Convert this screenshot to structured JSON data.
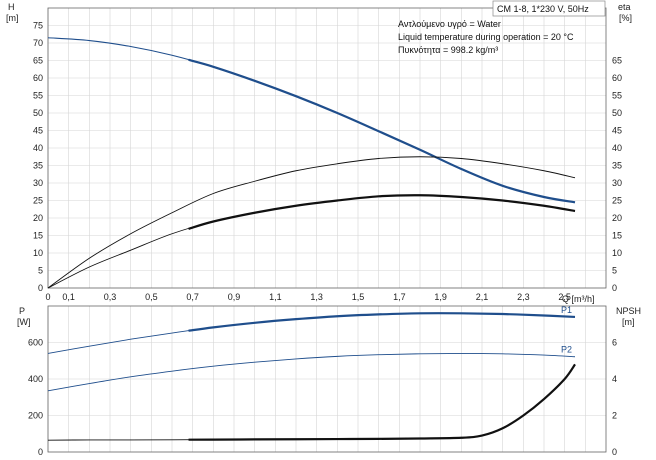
{
  "chart_data": {
    "type": "line",
    "title": "CM 1-8, 1*230 V, 50Hz",
    "annotations": [
      "Αντλούμενο υγρό = Water",
      "Liquid temperature during operation = 20 °C",
      "Πυκνότητα = 998.2 kg/m³"
    ],
    "grid": true,
    "top_panel": {
      "xlabel": "Q [m³/h]",
      "xlim": [
        0,
        2.7
      ],
      "x_ticks": [
        "0",
        "0,1",
        "0,3",
        "0,5",
        "0,7",
        "0,9",
        "1,1",
        "1,3",
        "1,5",
        "1,7",
        "1,9",
        "2,1",
        "2,3",
        "2,5"
      ],
      "x_tick_values": [
        0,
        0.1,
        0.3,
        0.5,
        0.7,
        0.9,
        1.1,
        1.3,
        1.5,
        1.7,
        1.9,
        2.1,
        2.3,
        2.5
      ],
      "left_axis": {
        "label": "H",
        "unit": "[m]",
        "lim": [
          0,
          80
        ],
        "ticks": [
          0,
          5,
          10,
          15,
          20,
          25,
          30,
          35,
          40,
          45,
          50,
          55,
          60,
          65,
          70,
          75
        ]
      },
      "right_axis": {
        "label": "eta",
        "unit": "[%]",
        "lim": [
          0,
          80
        ],
        "ticks": [
          0,
          5,
          10,
          15,
          20,
          25,
          30,
          35,
          40,
          45,
          50,
          55,
          60,
          65
        ]
      },
      "series": [
        {
          "name": "",
          "axis": "left",
          "color": "#1f4e8c",
          "width": 1.1,
          "x": [
            0,
            0.2,
            0.4,
            0.6,
            0.8,
            1.0,
            1.2,
            1.4,
            1.6,
            1.8,
            2.0,
            2.2,
            2.4,
            2.55
          ],
          "y": [
            71.5,
            70.7,
            69.0,
            66.5,
            63.2,
            59.2,
            54.8,
            50.0,
            44.8,
            39.5,
            34.0,
            29.2,
            26.0,
            24.5
          ],
          "bold_from": 0.68
        },
        {
          "name": "",
          "axis": "right",
          "color": "#111111",
          "width": 0.9,
          "x": [
            0,
            0.2,
            0.4,
            0.6,
            0.8,
            1.0,
            1.2,
            1.4,
            1.6,
            1.8,
            2.0,
            2.2,
            2.4,
            2.55
          ],
          "y": [
            0,
            8.5,
            15.5,
            21.5,
            27.0,
            30.5,
            33.5,
            35.5,
            37.0,
            37.5,
            37.0,
            35.5,
            33.5,
            31.5
          ]
        },
        {
          "name": "",
          "axis": "right",
          "color": "#111111",
          "width": 0.9,
          "x": [
            0,
            0.2,
            0.4,
            0.6,
            0.8,
            1.0,
            1.2,
            1.4,
            1.6,
            1.8,
            2.0,
            2.2,
            2.4,
            2.55
          ],
          "y": [
            0,
            6.0,
            10.8,
            15.5,
            19.0,
            21.5,
            23.5,
            25.0,
            26.2,
            26.5,
            26.0,
            25.0,
            23.5,
            22.0
          ],
          "bold_from": 0.68
        }
      ]
    },
    "bottom_panel": {
      "left_axis": {
        "label": "P",
        "unit": "[W]",
        "lim": [
          0,
          800
        ],
        "ticks": [
          0,
          200,
          400,
          600
        ]
      },
      "right_axis": {
        "label": "NPSH",
        "unit": "[m]",
        "lim": [
          0,
          8
        ],
        "ticks": [
          0,
          2,
          4,
          6
        ]
      },
      "series": [
        {
          "name": "P1",
          "axis": "left",
          "color": "#1f4e8c",
          "width": 0.9,
          "x": [
            0,
            0.2,
            0.4,
            0.6,
            0.8,
            1.0,
            1.2,
            1.4,
            1.6,
            1.8,
            2.0,
            2.2,
            2.4,
            2.55
          ],
          "y": [
            540,
            580,
            618,
            652,
            683,
            708,
            728,
            744,
            754,
            760,
            760,
            756,
            748,
            740
          ],
          "bold_from": 0.68
        },
        {
          "name": "P2",
          "axis": "left",
          "color": "#1f4e8c",
          "width": 0.9,
          "x": [
            0,
            0.2,
            0.4,
            0.6,
            0.8,
            1.0,
            1.2,
            1.4,
            1.6,
            1.8,
            2.0,
            2.2,
            2.4,
            2.55
          ],
          "y": [
            335,
            375,
            412,
            443,
            470,
            492,
            510,
            524,
            533,
            538,
            540,
            538,
            531,
            522
          ]
        },
        {
          "name": "",
          "axis": "right",
          "color": "#111111",
          "width": 0.9,
          "x": [
            0,
            0.2,
            0.4,
            0.6,
            0.8,
            1.0,
            1.2,
            1.4,
            1.6,
            1.8,
            2.0,
            2.1,
            2.2,
            2.3,
            2.4,
            2.5,
            2.55
          ],
          "y": [
            0.65,
            0.66,
            0.66,
            0.67,
            0.68,
            0.69,
            0.7,
            0.71,
            0.72,
            0.74,
            0.78,
            0.9,
            1.3,
            2.0,
            2.9,
            4.0,
            4.8
          ],
          "bold_from": 0.68
        }
      ]
    }
  }
}
